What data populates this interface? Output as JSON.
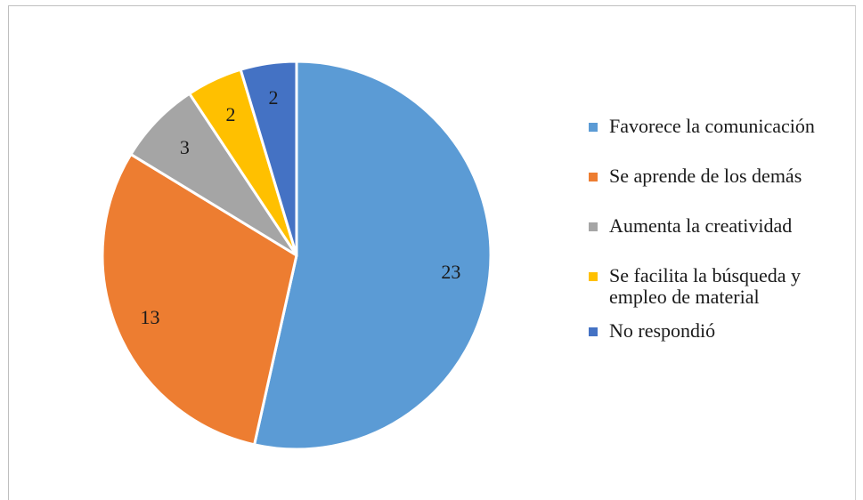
{
  "chart_data": {
    "type": "pie",
    "categories": [
      "Favorece la comunicación",
      "Se aprende de los demás",
      "Aumenta la creatividad",
      "Se facilita la búsqueda y empleo de material",
      "No respondió"
    ],
    "values": [
      23,
      13,
      3,
      2,
      2
    ],
    "colors": [
      "#5B9BD5",
      "#ED7D31",
      "#A5A5A5",
      "#FFC000",
      "#4472C4"
    ],
    "data_labels": [
      "23",
      "13",
      "3",
      "2",
      "2"
    ],
    "legend_position": "right",
    "start_angle": "12 o'clock",
    "direction": "clockwise"
  },
  "legend": {
    "items": [
      {
        "lines": [
          "Favorece la comunicación"
        ]
      },
      {
        "lines": [
          "Se aprende de los demás"
        ]
      },
      {
        "lines": [
          "Aumenta la creatividad"
        ]
      },
      {
        "lines": [
          "Se facilita la búsqueda y",
          "empleo de material"
        ]
      },
      {
        "lines": [
          "No respondió"
        ]
      }
    ]
  }
}
